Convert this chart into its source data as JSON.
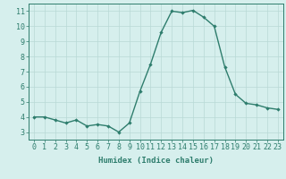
{
  "x": [
    0,
    1,
    2,
    3,
    4,
    5,
    6,
    7,
    8,
    9,
    10,
    11,
    12,
    13,
    14,
    15,
    16,
    17,
    18,
    19,
    20,
    21,
    22,
    23
  ],
  "y": [
    4.0,
    4.0,
    3.8,
    3.6,
    3.8,
    3.4,
    3.5,
    3.4,
    3.0,
    3.6,
    5.7,
    7.5,
    9.6,
    11.0,
    10.9,
    11.05,
    10.6,
    10.0,
    7.3,
    5.5,
    4.9,
    4.8,
    4.6,
    4.5
  ],
  "line_color": "#2e7d6d",
  "marker": "D",
  "marker_size": 2.2,
  "bg_color": "#d6efed",
  "grid_color": "#b8d9d6",
  "axis_color": "#2e7d6d",
  "xlabel": "Humidex (Indice chaleur)",
  "xlim": [
    -0.5,
    23.5
  ],
  "ylim": [
    2.5,
    11.5
  ],
  "yticks": [
    3,
    4,
    5,
    6,
    7,
    8,
    9,
    10,
    11
  ],
  "xticks": [
    0,
    1,
    2,
    3,
    4,
    5,
    6,
    7,
    8,
    9,
    10,
    11,
    12,
    13,
    14,
    15,
    16,
    17,
    18,
    19,
    20,
    21,
    22,
    23
  ],
  "xlabel_fontsize": 6.5,
  "tick_fontsize": 6,
  "label_color": "#2e7d6d"
}
